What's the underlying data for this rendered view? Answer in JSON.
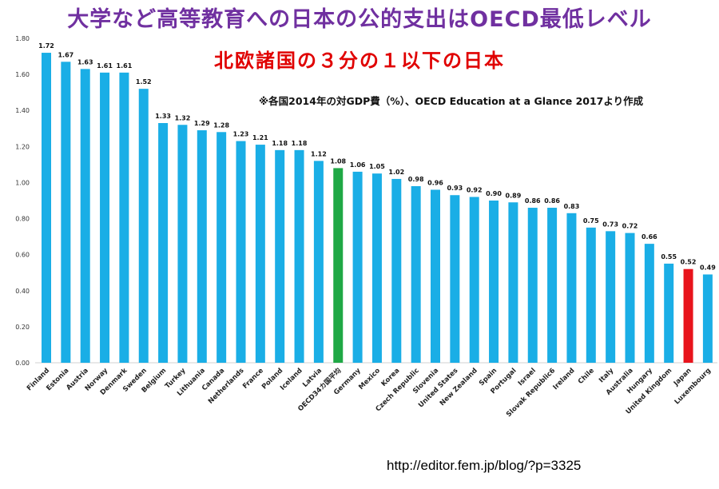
{
  "header": {
    "title": "大学など高等教育への日本の公的支出はOECD最低レベル",
    "subtitle": "北欧諸国の３分の１以下の日本",
    "note": "※各国2014年の対GDP費（%）、OECD Education at a Glance 2017より作成"
  },
  "footer": {
    "source_url": "http://editor.fem.jp/blog/?p=3325"
  },
  "chart_data": {
    "type": "bar",
    "title": "",
    "xlabel": "",
    "ylabel": "",
    "ylim": [
      0,
      1.8
    ],
    "yticks": [
      "0.00",
      "0.20",
      "0.40",
      "0.60",
      "0.80",
      "1.00",
      "1.20",
      "1.40",
      "1.60",
      "1.80"
    ],
    "grid": false,
    "legend": "none",
    "categories": [
      "Finland",
      "Estonia",
      "Austria",
      "Norway",
      "Denmark",
      "Sweden",
      "Belgium",
      "Turkey",
      "Lithuania",
      "Canada",
      "Netherlands",
      "France",
      "Poland",
      "Iceland",
      "Latvia",
      "OECD34カ国平均",
      "Germany",
      "Mexico",
      "Korea",
      "Czech Republic",
      "Slovenia",
      "United States",
      "New Zealand",
      "Spain",
      "Portugal",
      "Israel",
      "Slovak Republic6",
      "Ireland",
      "Chile",
      "Italy",
      "Australia",
      "Hungary",
      "United Kingdom",
      "Japan",
      "Luxembourg"
    ],
    "values": [
      1.72,
      1.67,
      1.63,
      1.61,
      1.61,
      1.52,
      1.33,
      1.32,
      1.29,
      1.28,
      1.23,
      1.21,
      1.18,
      1.18,
      1.12,
      1.08,
      1.06,
      1.05,
      1.02,
      0.98,
      0.96,
      0.93,
      0.92,
      0.9,
      0.89,
      0.86,
      0.86,
      0.83,
      0.75,
      0.73,
      0.72,
      0.66,
      0.55,
      0.52,
      0.49
    ],
    "value_labels": [
      "1.72",
      "1.67",
      "1.63",
      "1.61",
      "1.61",
      "1.52",
      "1.33",
      "1.32",
      "1.29",
      "1.28",
      "1.23",
      "1.21",
      "1.18",
      "1.18",
      "1.12",
      "1.08",
      "1.06",
      "1.05",
      "1.02",
      "0.98",
      "0.96",
      "0.93",
      "0.92",
      "0.90",
      "0.89",
      "0.86",
      "0.86",
      "0.83",
      "0.75",
      "0.73",
      "0.72",
      "0.66",
      "0.55",
      "0.52",
      "0.49"
    ],
    "colors": {
      "default": "#1aaee6",
      "OECD34カ国平均": "#1fa845",
      "Japan": "#e8141c"
    }
  }
}
